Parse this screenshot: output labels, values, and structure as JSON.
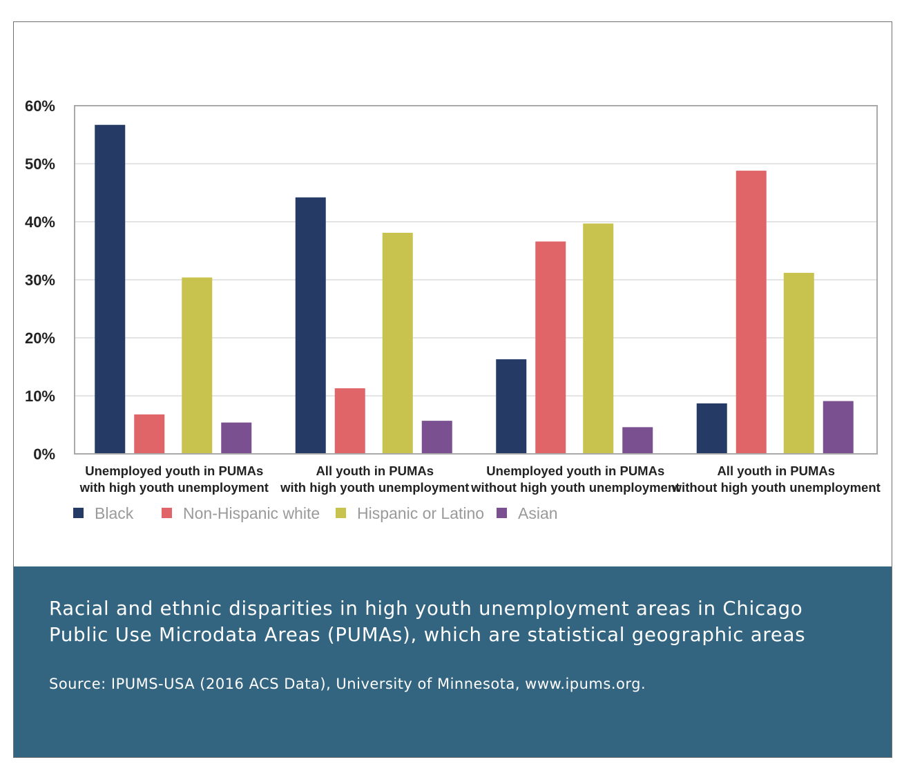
{
  "chart_data": {
    "type": "bar",
    "title": "",
    "xlabel": "",
    "ylabel": "",
    "ylim": [
      0,
      60
    ],
    "ytick_values": [
      0,
      10,
      20,
      30,
      40,
      50,
      60
    ],
    "ytick_labels": [
      "0%",
      "10%",
      "20%",
      "30%",
      "40%",
      "50%",
      "60%"
    ],
    "grid": true,
    "legend_position": "bottom-left",
    "categories": [
      [
        "Unemployed youth in PUMAs",
        "with high youth unemployment"
      ],
      [
        "All youth in PUMAs",
        "with high youth unemployment"
      ],
      [
        "Unemployed youth in PUMAs",
        "without high youth unemployment"
      ],
      [
        "All youth in PUMAs",
        "without high youth unemployment"
      ]
    ],
    "series": [
      {
        "name": "Black",
        "color": "#253b66",
        "values": [
          56.7,
          44.2,
          16.3,
          8.7
        ]
      },
      {
        "name": "Non-Hispanic white",
        "color": "#e06568",
        "values": [
          6.8,
          11.3,
          36.6,
          48.8
        ]
      },
      {
        "name": "Hispanic or Latino",
        "color": "#c8c24f",
        "values": [
          30.4,
          38.1,
          39.7,
          31.2
        ]
      },
      {
        "name": "Asian",
        "color": "#7a5090",
        "values": [
          5.4,
          5.7,
          4.6,
          9.1
        ]
      }
    ]
  },
  "caption": {
    "title": "Racial and ethnic disparities in high youth unemployment areas in Chicago Public Use Microdata Areas (PUMAs), which are statistical geographic areas",
    "source": "Source: IPUMS-USA (2016 ACS Data), University of Minnesota, www.ipums.org."
  },
  "colors": {
    "caption_background": "#336480",
    "gridline": "#dcdcdc",
    "plot_border": "#a9a9a9"
  }
}
